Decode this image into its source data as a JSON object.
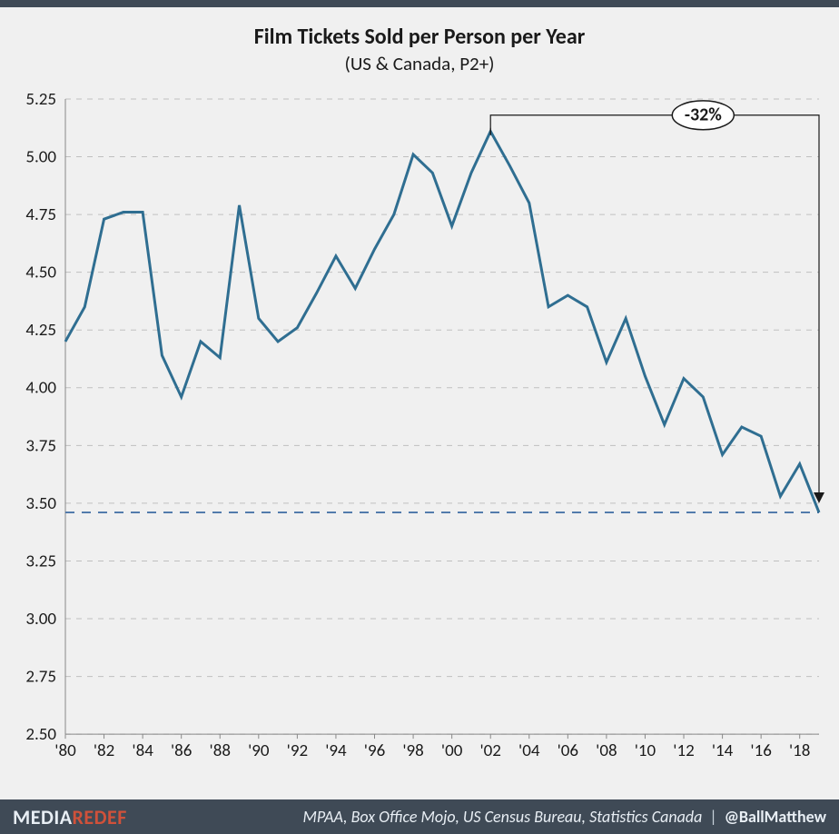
{
  "title": "Film Tickets Sold per Person per Year",
  "subtitle": "(US & Canada, P2+)",
  "chart": {
    "type": "line",
    "x_start_year": 1980,
    "x_end_year": 2019,
    "x_ticks_every": 2,
    "x_tick_prefix": "'",
    "y_min": 2.5,
    "y_max": 5.25,
    "y_ticks": [
      2.5,
      2.75,
      3.0,
      3.25,
      3.5,
      3.75,
      4.0,
      4.25,
      4.5,
      4.75,
      5.0,
      5.25
    ],
    "y_tick_decimals": 2,
    "line_color": "#2f6e91",
    "line_width": 3,
    "background_color": "#f0f0f0",
    "grid_color": "#bfbfbf",
    "grid_dash": "6 6",
    "axis_color": "#888888",
    "reference_line": {
      "y": 3.46,
      "color": "#4a74a8",
      "dash": "10 8",
      "width": 2
    },
    "callout": {
      "label": "-32%",
      "from_year": 2002,
      "to_year": 2019,
      "bracket_y": 5.18,
      "arrow_to_y": 3.5,
      "badge_cx_year": 2013,
      "text_fontsize": 20,
      "line_color": "#1a1a1a"
    },
    "series": [
      {
        "year": 1980,
        "value": 4.2
      },
      {
        "year": 1981,
        "value": 4.35
      },
      {
        "year": 1982,
        "value": 4.73
      },
      {
        "year": 1983,
        "value": 4.76
      },
      {
        "year": 1984,
        "value": 4.76
      },
      {
        "year": 1985,
        "value": 4.14
      },
      {
        "year": 1986,
        "value": 3.96
      },
      {
        "year": 1987,
        "value": 4.2
      },
      {
        "year": 1988,
        "value": 4.13
      },
      {
        "year": 1989,
        "value": 4.79
      },
      {
        "year": 1990,
        "value": 4.3
      },
      {
        "year": 1991,
        "value": 4.2
      },
      {
        "year": 1992,
        "value": 4.26
      },
      {
        "year": 1993,
        "value": 4.41
      },
      {
        "year": 1994,
        "value": 4.57
      },
      {
        "year": 1995,
        "value": 4.43
      },
      {
        "year": 1996,
        "value": 4.6
      },
      {
        "year": 1997,
        "value": 4.75
      },
      {
        "year": 1998,
        "value": 5.01
      },
      {
        "year": 1999,
        "value": 4.93
      },
      {
        "year": 2000,
        "value": 4.7
      },
      {
        "year": 2001,
        "value": 4.93
      },
      {
        "year": 2002,
        "value": 5.11
      },
      {
        "year": 2003,
        "value": 4.96
      },
      {
        "year": 2004,
        "value": 4.8
      },
      {
        "year": 2005,
        "value": 4.35
      },
      {
        "year": 2006,
        "value": 4.4
      },
      {
        "year": 2007,
        "value": 4.35
      },
      {
        "year": 2008,
        "value": 4.11
      },
      {
        "year": 2009,
        "value": 4.3
      },
      {
        "year": 2010,
        "value": 4.05
      },
      {
        "year": 2011,
        "value": 3.84
      },
      {
        "year": 2012,
        "value": 4.04
      },
      {
        "year": 2013,
        "value": 3.96
      },
      {
        "year": 2014,
        "value": 3.71
      },
      {
        "year": 2015,
        "value": 3.83
      },
      {
        "year": 2016,
        "value": 3.79
      },
      {
        "year": 2017,
        "value": 3.53
      },
      {
        "year": 2018,
        "value": 3.67
      },
      {
        "year": 2019,
        "value": 3.46
      }
    ]
  },
  "footer": {
    "brand_left": "MEDIA",
    "brand_right": "REDEF",
    "sources": "MPAA, Box Office Mojo, US Census Bureau, Statistics Canada",
    "separator": "|",
    "handle": "@BallMatthew"
  }
}
